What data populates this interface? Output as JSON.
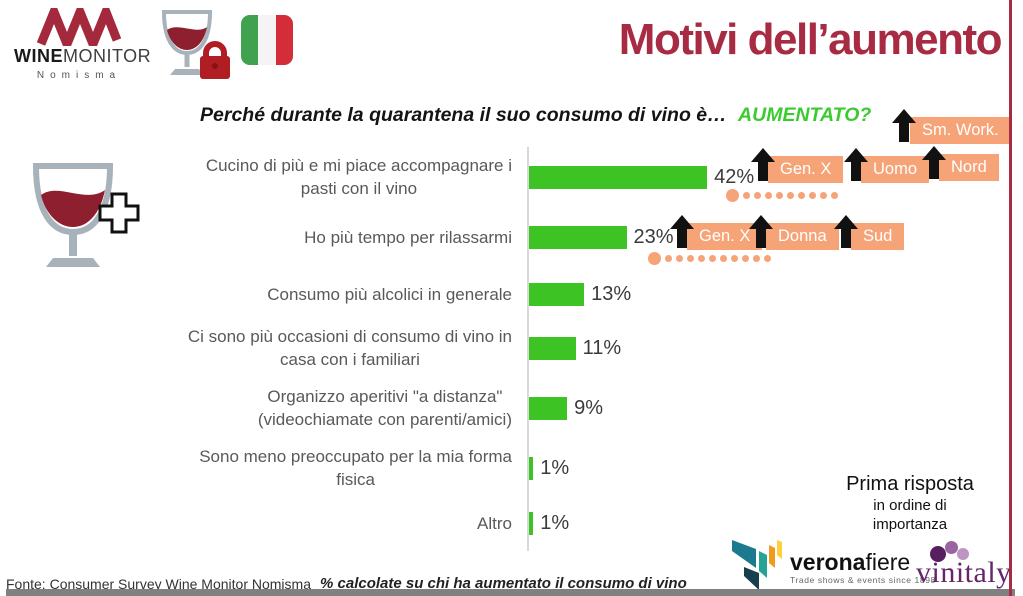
{
  "brand": {
    "wine": "WINE",
    "monitor": "MONITOR",
    "nomisma": "Nomisma"
  },
  "title": "Motivi dell’aumento",
  "question": {
    "text": "Perché durante la quarantena il suo consumo di vino è…",
    "highlight": "AUMENTATO?"
  },
  "chart_data": {
    "type": "bar",
    "orientation": "horizontal",
    "categories": [
      "Cucino di più e mi piace accompagnare i pasti con il vino",
      "Ho più tempo per rilassarmi",
      "Consumo più alcolici in generale",
      "Ci sono più occasioni di consumo di vino in casa con i familiari",
      "Organizzo aperitivi \"a distanza\" (videochiamate con parenti/amici)",
      "Sono meno preoccupato per la mia forma fisica",
      "Altro"
    ],
    "categories_wrapped": [
      "Cucino di più e mi piace accompagnare i\npasti con il vino",
      "Ho più tempo per rilassarmi",
      "Consumo più alcolici in generale",
      "Ci sono più occasioni di consumo di vino in\ncasa con i familiari",
      "Organizzo aperitivi \"a distanza\"\n(videochiamate con parenti/amici)",
      "Sono meno preoccupato per la mia forma\nfisica",
      "Altro"
    ],
    "values": [
      42,
      23,
      13,
      11,
      9,
      1,
      1
    ],
    "value_labels": [
      "42%",
      "23%",
      "13%",
      "11%",
      "9%",
      "1%",
      "1%"
    ],
    "xlim": [
      0,
      45
    ],
    "bar_color": "#3ec324",
    "grid": false,
    "legend": false,
    "annotations": [
      {
        "bar": "42%",
        "badges": [
          "Gen. X",
          "Uomo",
          "Nord",
          "Sm. Work."
        ]
      },
      {
        "bar": "23%",
        "badges": [
          "Gen. X",
          "Donna",
          "Sud"
        ]
      }
    ]
  },
  "badges": {
    "sm_work": "Sm. Work.",
    "row1": [
      "Gen. X",
      "Uomo",
      "Nord"
    ],
    "row2": [
      "Gen. X",
      "Donna",
      "Sud"
    ],
    "color": "#f5a377"
  },
  "note": {
    "line1": "Prima risposta",
    "line2": "in ordine di",
    "line3": "importanza"
  },
  "footer": {
    "source": "Fonte: Consumer Survey Wine Monitor Nomisma",
    "method": "% calcolate su chi ha aumentato il consumo di vino"
  },
  "logos": {
    "veronafiere": {
      "bold": "verona",
      "regular": "fiere",
      "tagline": "Trade shows & events since 1898"
    },
    "vinitaly": "vinitaly"
  },
  "colors": {
    "title_red": "#a72b42",
    "bar_green": "#3ec324",
    "highlight_green": "#3ccb2f",
    "badge_orange": "#f5a377"
  }
}
